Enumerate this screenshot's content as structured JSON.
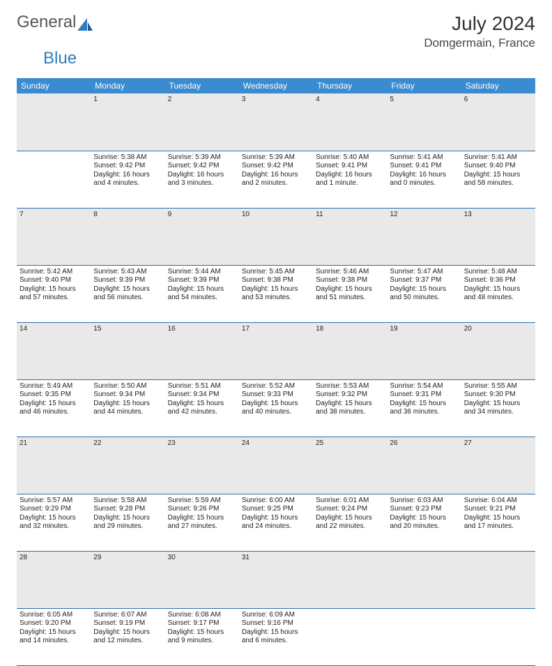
{
  "brand": {
    "word1": "General",
    "word2": "Blue"
  },
  "title": {
    "month": "July 2024",
    "location": "Domgermain, France"
  },
  "colors": {
    "header_bg": "#3a8bd0",
    "header_fg": "#ffffff",
    "daynum_bg": "#e9e9e9",
    "daynum_fg": "#666666",
    "row_divider": "#2e6da8",
    "brand_blue": "#2e7cc0",
    "text": "#222222"
  },
  "day_headers": [
    "Sunday",
    "Monday",
    "Tuesday",
    "Wednesday",
    "Thursday",
    "Friday",
    "Saturday"
  ],
  "weeks": [
    {
      "nums": [
        "",
        "1",
        "2",
        "3",
        "4",
        "5",
        "6"
      ],
      "cells": [
        null,
        {
          "sr": "Sunrise: 5:38 AM",
          "ss": "Sunset: 9:42 PM",
          "d1": "Daylight: 16 hours",
          "d2": "and 4 minutes."
        },
        {
          "sr": "Sunrise: 5:39 AM",
          "ss": "Sunset: 9:42 PM",
          "d1": "Daylight: 16 hours",
          "d2": "and 3 minutes."
        },
        {
          "sr": "Sunrise: 5:39 AM",
          "ss": "Sunset: 9:42 PM",
          "d1": "Daylight: 16 hours",
          "d2": "and 2 minutes."
        },
        {
          "sr": "Sunrise: 5:40 AM",
          "ss": "Sunset: 9:41 PM",
          "d1": "Daylight: 16 hours",
          "d2": "and 1 minute."
        },
        {
          "sr": "Sunrise: 5:41 AM",
          "ss": "Sunset: 9:41 PM",
          "d1": "Daylight: 16 hours",
          "d2": "and 0 minutes."
        },
        {
          "sr": "Sunrise: 5:41 AM",
          "ss": "Sunset: 9:40 PM",
          "d1": "Daylight: 15 hours",
          "d2": "and 58 minutes."
        }
      ]
    },
    {
      "nums": [
        "7",
        "8",
        "9",
        "10",
        "11",
        "12",
        "13"
      ],
      "cells": [
        {
          "sr": "Sunrise: 5:42 AM",
          "ss": "Sunset: 9:40 PM",
          "d1": "Daylight: 15 hours",
          "d2": "and 57 minutes."
        },
        {
          "sr": "Sunrise: 5:43 AM",
          "ss": "Sunset: 9:39 PM",
          "d1": "Daylight: 15 hours",
          "d2": "and 56 minutes."
        },
        {
          "sr": "Sunrise: 5:44 AM",
          "ss": "Sunset: 9:39 PM",
          "d1": "Daylight: 15 hours",
          "d2": "and 54 minutes."
        },
        {
          "sr": "Sunrise: 5:45 AM",
          "ss": "Sunset: 9:38 PM",
          "d1": "Daylight: 15 hours",
          "d2": "and 53 minutes."
        },
        {
          "sr": "Sunrise: 5:46 AM",
          "ss": "Sunset: 9:38 PM",
          "d1": "Daylight: 15 hours",
          "d2": "and 51 minutes."
        },
        {
          "sr": "Sunrise: 5:47 AM",
          "ss": "Sunset: 9:37 PM",
          "d1": "Daylight: 15 hours",
          "d2": "and 50 minutes."
        },
        {
          "sr": "Sunrise: 5:48 AM",
          "ss": "Sunset: 9:36 PM",
          "d1": "Daylight: 15 hours",
          "d2": "and 48 minutes."
        }
      ]
    },
    {
      "nums": [
        "14",
        "15",
        "16",
        "17",
        "18",
        "19",
        "20"
      ],
      "cells": [
        {
          "sr": "Sunrise: 5:49 AM",
          "ss": "Sunset: 9:35 PM",
          "d1": "Daylight: 15 hours",
          "d2": "and 46 minutes."
        },
        {
          "sr": "Sunrise: 5:50 AM",
          "ss": "Sunset: 9:34 PM",
          "d1": "Daylight: 15 hours",
          "d2": "and 44 minutes."
        },
        {
          "sr": "Sunrise: 5:51 AM",
          "ss": "Sunset: 9:34 PM",
          "d1": "Daylight: 15 hours",
          "d2": "and 42 minutes."
        },
        {
          "sr": "Sunrise: 5:52 AM",
          "ss": "Sunset: 9:33 PM",
          "d1": "Daylight: 15 hours",
          "d2": "and 40 minutes."
        },
        {
          "sr": "Sunrise: 5:53 AM",
          "ss": "Sunset: 9:32 PM",
          "d1": "Daylight: 15 hours",
          "d2": "and 38 minutes."
        },
        {
          "sr": "Sunrise: 5:54 AM",
          "ss": "Sunset: 9:31 PM",
          "d1": "Daylight: 15 hours",
          "d2": "and 36 minutes."
        },
        {
          "sr": "Sunrise: 5:55 AM",
          "ss": "Sunset: 9:30 PM",
          "d1": "Daylight: 15 hours",
          "d2": "and 34 minutes."
        }
      ]
    },
    {
      "nums": [
        "21",
        "22",
        "23",
        "24",
        "25",
        "26",
        "27"
      ],
      "cells": [
        {
          "sr": "Sunrise: 5:57 AM",
          "ss": "Sunset: 9:29 PM",
          "d1": "Daylight: 15 hours",
          "d2": "and 32 minutes."
        },
        {
          "sr": "Sunrise: 5:58 AM",
          "ss": "Sunset: 9:28 PM",
          "d1": "Daylight: 15 hours",
          "d2": "and 29 minutes."
        },
        {
          "sr": "Sunrise: 5:59 AM",
          "ss": "Sunset: 9:26 PM",
          "d1": "Daylight: 15 hours",
          "d2": "and 27 minutes."
        },
        {
          "sr": "Sunrise: 6:00 AM",
          "ss": "Sunset: 9:25 PM",
          "d1": "Daylight: 15 hours",
          "d2": "and 24 minutes."
        },
        {
          "sr": "Sunrise: 6:01 AM",
          "ss": "Sunset: 9:24 PM",
          "d1": "Daylight: 15 hours",
          "d2": "and 22 minutes."
        },
        {
          "sr": "Sunrise: 6:03 AM",
          "ss": "Sunset: 9:23 PM",
          "d1": "Daylight: 15 hours",
          "d2": "and 20 minutes."
        },
        {
          "sr": "Sunrise: 6:04 AM",
          "ss": "Sunset: 9:21 PM",
          "d1": "Daylight: 15 hours",
          "d2": "and 17 minutes."
        }
      ]
    },
    {
      "nums": [
        "28",
        "29",
        "30",
        "31",
        "",
        "",
        ""
      ],
      "cells": [
        {
          "sr": "Sunrise: 6:05 AM",
          "ss": "Sunset: 9:20 PM",
          "d1": "Daylight: 15 hours",
          "d2": "and 14 minutes."
        },
        {
          "sr": "Sunrise: 6:07 AM",
          "ss": "Sunset: 9:19 PM",
          "d1": "Daylight: 15 hours",
          "d2": "and 12 minutes."
        },
        {
          "sr": "Sunrise: 6:08 AM",
          "ss": "Sunset: 9:17 PM",
          "d1": "Daylight: 15 hours",
          "d2": "and 9 minutes."
        },
        {
          "sr": "Sunrise: 6:09 AM",
          "ss": "Sunset: 9:16 PM",
          "d1": "Daylight: 15 hours",
          "d2": "and 6 minutes."
        },
        null,
        null,
        null
      ]
    }
  ]
}
